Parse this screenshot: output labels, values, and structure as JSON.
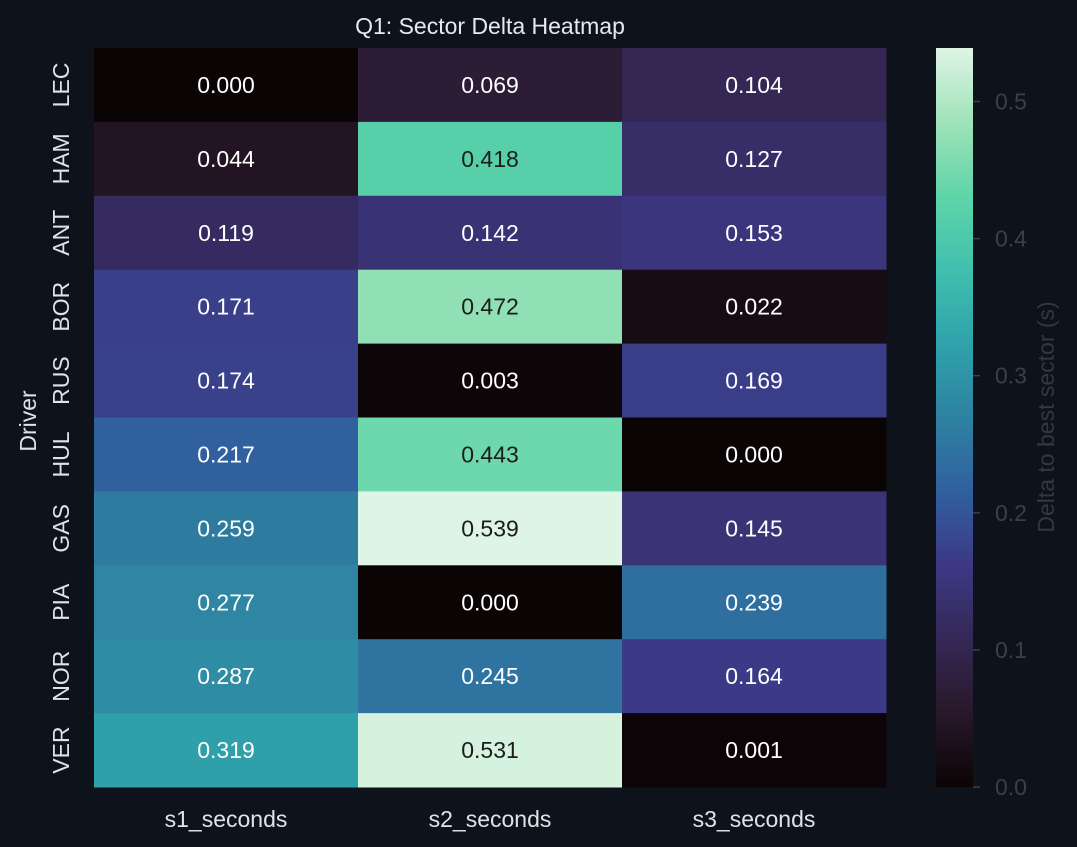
{
  "chart_data": {
    "type": "heatmap",
    "title": "Q1: Sector Delta Heatmap",
    "xlabel": "",
    "ylabel": "Driver",
    "x_categories": [
      "s1_seconds",
      "s2_seconds",
      "s3_seconds"
    ],
    "y_categories": [
      "LEC",
      "HAM",
      "ANT",
      "BOR",
      "RUS",
      "HUL",
      "GAS",
      "PIA",
      "NOR",
      "VER"
    ],
    "values": [
      [
        0.0,
        0.069,
        0.104
      ],
      [
        0.044,
        0.418,
        0.127
      ],
      [
        0.119,
        0.142,
        0.153
      ],
      [
        0.171,
        0.472,
        0.022
      ],
      [
        0.174,
        0.003,
        0.169
      ],
      [
        0.217,
        0.443,
        0.0
      ],
      [
        0.259,
        0.539,
        0.145
      ],
      [
        0.277,
        0.0,
        0.239
      ],
      [
        0.287,
        0.245,
        0.164
      ],
      [
        0.319,
        0.531,
        0.001
      ]
    ],
    "value_labels": [
      [
        "0.000",
        "0.069",
        "0.104"
      ],
      [
        "0.044",
        "0.418",
        "0.127"
      ],
      [
        "0.119",
        "0.142",
        "0.153"
      ],
      [
        "0.171",
        "0.472",
        "0.022"
      ],
      [
        "0.174",
        "0.003",
        "0.169"
      ],
      [
        "0.217",
        "0.443",
        "0.000"
      ],
      [
        "0.259",
        "0.539",
        "0.145"
      ],
      [
        "0.277",
        "0.000",
        "0.239"
      ],
      [
        "0.287",
        "0.245",
        "0.164"
      ],
      [
        "0.319",
        "0.531",
        "0.001"
      ]
    ],
    "colorbar": {
      "label": "Delta to best sector (s)",
      "range": [
        0.0,
        0.539
      ],
      "ticks": [
        0.0,
        0.1,
        0.2,
        0.3,
        0.4,
        0.5
      ],
      "tick_labels": [
        "0.0",
        "0.1",
        "0.2",
        "0.3",
        "0.4",
        "0.5"
      ],
      "colormap": "mako"
    },
    "grid": false,
    "legend": "colorbar-right"
  },
  "colors": {
    "background": "#0e121a",
    "title_text": "#e6e9ee",
    "tick_text": "#dfe3e8",
    "colorbar_tick_text": "#3b4048",
    "colorbar_label_text": "#33383f",
    "cell_text_light": "#ffffff",
    "cell_text_dark": "#1c1c1c"
  }
}
